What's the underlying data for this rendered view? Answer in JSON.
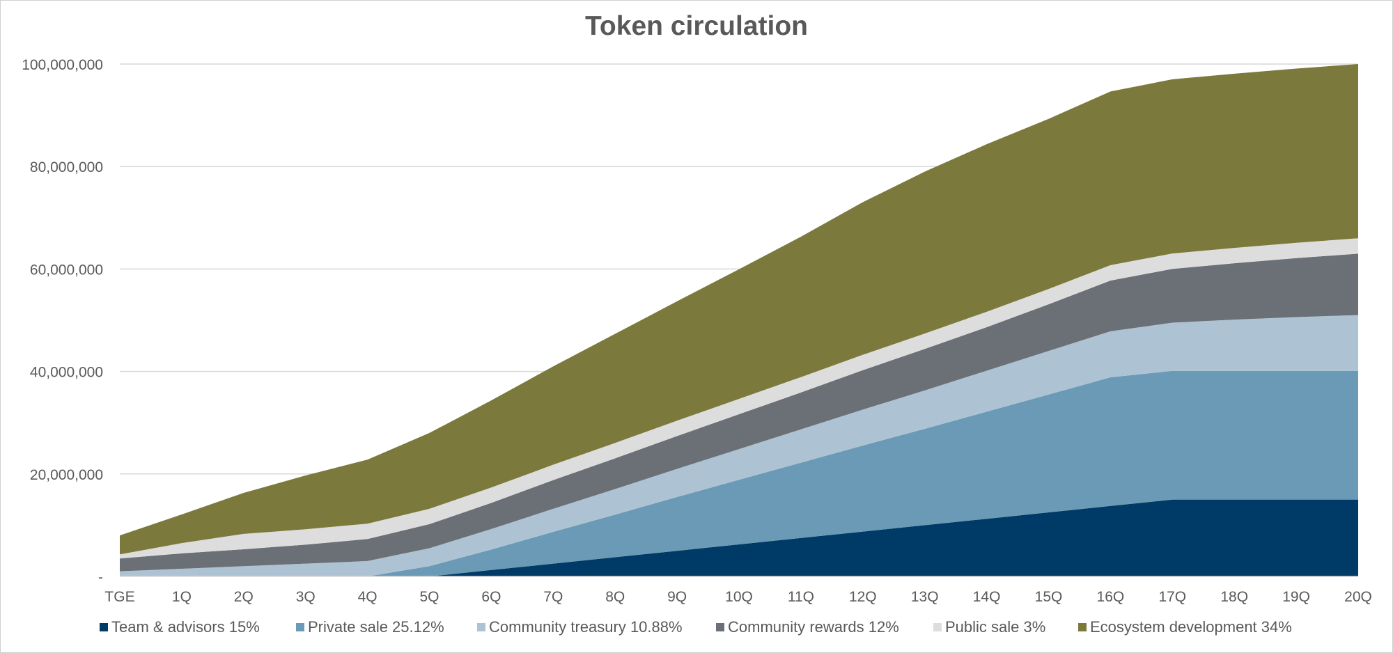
{
  "chart_data": {
    "type": "area",
    "stacked": true,
    "title": "Token circulation",
    "xlabel": "",
    "ylabel": "",
    "ylim": [
      0,
      100000000
    ],
    "y_ticks": [
      0,
      20000000,
      40000000,
      60000000,
      80000000,
      100000000
    ],
    "y_tick_labels": [
      "-",
      "20,000,000",
      "40,000,000",
      "60,000,000",
      "80,000,000",
      "100,000,000"
    ],
    "grid": true,
    "legend_position": "bottom",
    "categories": [
      "TGE",
      "1Q",
      "2Q",
      "3Q",
      "4Q",
      "5Q",
      "6Q",
      "7Q",
      "8Q",
      "9Q",
      "10Q",
      "11Q",
      "12Q",
      "13Q",
      "14Q",
      "15Q",
      "16Q",
      "17Q",
      "18Q",
      "19Q",
      "20Q"
    ],
    "series": [
      {
        "name": "Team & advisors 15%",
        "color": "#003a66",
        "values": [
          0,
          0,
          0,
          0,
          0,
          0,
          1250000,
          2500000,
          3750000,
          5000000,
          6250000,
          7500000,
          8750000,
          10000000,
          11250000,
          12500000,
          13750000,
          15000000,
          15000000,
          15000000,
          15000000
        ]
      },
      {
        "name": "Private sale 25.12%",
        "color": "#6a9ab5",
        "values": [
          0,
          0,
          0,
          0,
          0,
          2000000,
          4000000,
          6200000,
          8300000,
          10500000,
          12600000,
          14700000,
          16800000,
          18800000,
          20900000,
          23000000,
          25100000,
          25120000,
          25120000,
          25120000,
          25120000
        ]
      },
      {
        "name": "Community treasury 10.88%",
        "color": "#adc3d3",
        "values": [
          1000000,
          1500000,
          2000000,
          2500000,
          3000000,
          3500000,
          4000000,
          4500000,
          5000000,
          5500000,
          6000000,
          6500000,
          7000000,
          7500000,
          8000000,
          8500000,
          9000000,
          9400000,
          10000000,
          10500000,
          10880000
        ]
      },
      {
        "name": "Community rewards 12%",
        "color": "#6a7075",
        "values": [
          2500000,
          3000000,
          3300000,
          3700000,
          4300000,
          4700000,
          5100000,
          5600000,
          6000000,
          6400000,
          6800000,
          7200000,
          7700000,
          8100000,
          8500000,
          9100000,
          9900000,
          10500000,
          11000000,
          11500000,
          12000000
        ]
      },
      {
        "name": "Public sale 3%",
        "color": "#dddddd",
        "values": [
          800000,
          2000000,
          3000000,
          3000000,
          3000000,
          3000000,
          3000000,
          3000000,
          3000000,
          3000000,
          3000000,
          3000000,
          3000000,
          3000000,
          3000000,
          3000000,
          3000000,
          3000000,
          3000000,
          3000000,
          3000000
        ]
      },
      {
        "name": "Ecosystem development 34%",
        "color": "#7b7a3c",
        "values": [
          3700000,
          5600000,
          8000000,
          10500000,
          12500000,
          14800000,
          17000000,
          19200000,
          21300000,
          23300000,
          25300000,
          27400000,
          29800000,
          31600000,
          32700000,
          33200000,
          33900000,
          34000000,
          34000000,
          34000000,
          34000000
        ]
      }
    ]
  }
}
